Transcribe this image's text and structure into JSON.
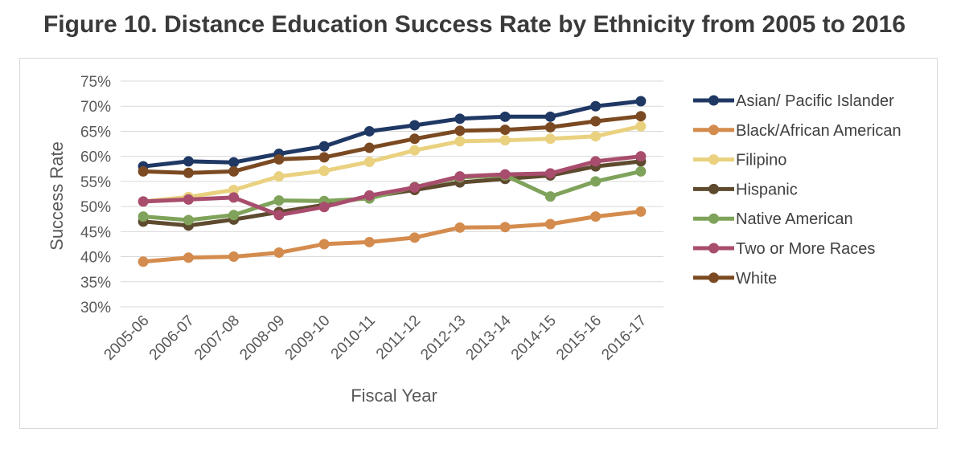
{
  "figure_title": "Figure 10. Distance Education Success Rate by Ethnicity from 2005 to 2016",
  "chart_data": {
    "type": "line",
    "title": "Figure 10. Distance Education Success Rate by Ethnicity from 2005 to 2016",
    "xlabel": "Fiscal Year",
    "ylabel": "Success Rate",
    "ylim": [
      30,
      75
    ],
    "yticks": [
      30,
      35,
      40,
      45,
      50,
      55,
      60,
      65,
      70,
      75
    ],
    "ytick_labels": [
      "30%",
      "35%",
      "40%",
      "45%",
      "50%",
      "55%",
      "60%",
      "65%",
      "70%",
      "75%"
    ],
    "grid": true,
    "legend_position": "right",
    "categories": [
      "2005-06",
      "2006-07",
      "2007-08",
      "2008-09",
      "2009-10",
      "2010-11",
      "2011-12",
      "2012-13",
      "2013-14",
      "2014-15",
      "2015-16",
      "2016-17"
    ],
    "series": [
      {
        "name": "Asian/ Pacific Islander",
        "color": "#1f3864",
        "values": [
          58,
          59,
          58.8,
          60.5,
          62,
          65,
          66.2,
          67.5,
          67.9,
          67.9,
          70,
          71
        ]
      },
      {
        "name": "Black/African American",
        "color": "#d48c4e",
        "values": [
          39,
          39.8,
          40,
          40.8,
          42.5,
          42.9,
          43.8,
          45.8,
          45.9,
          46.5,
          48,
          49
        ]
      },
      {
        "name": "Filipino",
        "color": "#e9d17f",
        "values": [
          51,
          51.9,
          53.3,
          56,
          57.1,
          58.9,
          61.2,
          63,
          63.2,
          63.5,
          64,
          66
        ]
      },
      {
        "name": "Hispanic",
        "color": "#5e4a2e",
        "values": [
          47,
          46.2,
          47.4,
          48.9,
          50.3,
          51.9,
          53.3,
          54.8,
          55.5,
          56.2,
          58,
          59
        ]
      },
      {
        "name": "Native American",
        "color": "#7fa35a",
        "values": [
          48,
          47.3,
          48.3,
          51.2,
          51.1,
          51.6,
          53.9,
          55.8,
          56.2,
          52,
          55,
          57
        ]
      },
      {
        "name": "Two or More Races",
        "color": "#a84d6e",
        "values": [
          51,
          51.4,
          51.8,
          48.3,
          49.9,
          52.2,
          53.8,
          56,
          56.4,
          56.6,
          59,
          60
        ]
      },
      {
        "name": "White",
        "color": "#7b4a22",
        "values": [
          57,
          56.7,
          57,
          59.4,
          59.8,
          61.7,
          63.5,
          65.1,
          65.3,
          65.8,
          67,
          68
        ]
      }
    ]
  }
}
